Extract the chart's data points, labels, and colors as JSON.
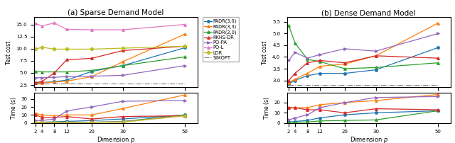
{
  "x": [
    2,
    4,
    8,
    12,
    20,
    30,
    50
  ],
  "sparse_cost": {
    "PADR(3,0)": [
      2.9,
      3.0,
      3.2,
      3.5,
      5.3,
      6.5,
      10.2
    ],
    "PADR(3,3)": [
      2.9,
      3.0,
      3.1,
      3.3,
      4.2,
      7.3,
      13.0
    ],
    "PADR(2,0)": [
      5.3,
      5.2,
      5.2,
      5.2,
      5.5,
      6.5,
      8.3
    ],
    "RKHS-DR": [
      3.0,
      3.2,
      5.0,
      7.7,
      8.0,
      9.6,
      10.5
    ],
    "PO-PA": [
      4.0,
      4.0,
      4.1,
      4.2,
      4.3,
      4.5,
      6.5
    ],
    "PO-L": [
      15.2,
      14.7,
      15.3,
      14.0,
      13.9,
      13.9,
      15.0
    ],
    "LDR": [
      9.9,
      10.3,
      9.9,
      9.9,
      9.9,
      10.1,
      10.5
    ],
    "SIMOPT": [
      2.8,
      2.8,
      2.8,
      2.8,
      2.8,
      2.8,
      2.8
    ]
  },
  "sparse_time": {
    "PADR(3,0)": [
      1.0,
      1.0,
      1.5,
      2.0,
      3.0,
      5.0,
      10.0
    ],
    "PADR(3,3)": [
      12.0,
      10.0,
      9.0,
      10.0,
      10.0,
      18.0,
      35.0
    ],
    "PADR(2,0)": [
      0.5,
      0.5,
      0.5,
      0.8,
      1.0,
      2.0,
      10.0
    ],
    "RKHS-DR": [
      10.0,
      7.0,
      7.0,
      8.0,
      5.0,
      8.0,
      9.0
    ],
    "PO-PA": [
      3.0,
      3.0,
      5.0,
      15.0,
      20.0,
      27.0,
      28.0
    ],
    "PO-L": [
      0.5,
      0.5,
      0.5,
      0.7,
      1.0,
      1.5,
      9.0
    ],
    "LDR": [
      0.5,
      0.5,
      0.5,
      0.5,
      0.8,
      1.0,
      9.0
    ]
  },
  "dense_cost": {
    "PADR(3,0)": [
      2.85,
      3.0,
      3.2,
      3.3,
      3.3,
      3.45,
      4.4
    ],
    "PADR(3,3)": [
      2.9,
      3.05,
      3.3,
      3.6,
      3.7,
      4.05,
      5.45
    ],
    "PADR(2,0)": [
      5.35,
      4.6,
      3.9,
      3.8,
      3.5,
      3.55,
      3.75
    ],
    "RKHS-DR": [
      3.0,
      3.3,
      3.75,
      3.85,
      3.75,
      4.05,
      3.95
    ],
    "PO-PA": [
      3.85,
      4.2,
      3.95,
      4.1,
      4.35,
      4.25,
      5.0
    ],
    "SIMOPT": [
      2.8,
      2.8,
      2.8,
      2.8,
      2.8,
      2.8,
      2.8
    ]
  },
  "dense_time": {
    "PADR(3,0)": [
      1.0,
      1.5,
      2.5,
      5.0,
      8.0,
      10.0,
      12.0
    ],
    "PADR(3,3)": [
      15.0,
      15.0,
      15.0,
      18.0,
      20.0,
      22.0,
      28.0
    ],
    "PADR(2,0)": [
      0.5,
      0.8,
      1.0,
      2.0,
      2.5,
      3.0,
      12.0
    ],
    "RKHS-DR": [
      15.0,
      15.0,
      13.0,
      13.0,
      10.0,
      14.0,
      13.0
    ],
    "PO-PA": [
      3.0,
      5.0,
      8.0,
      15.0,
      20.0,
      25.0,
      26.0
    ]
  },
  "colors": {
    "PADR(3,0)": "#1f77b4",
    "PADR(3,3)": "#ff7f0e",
    "PADR(2,0)": "#2ca02c",
    "RKHS-DR": "#d62728",
    "PO-PA": "#9467bd",
    "PO-L": "#e377c2",
    "LDR": "#bcbd22",
    "SIMOPT": "#7f7f7f"
  },
  "markers": {
    "PADR(3,0)": "o",
    "PADR(3,3)": "^",
    "PADR(2,0)": "^",
    "RKHS-DR": "^",
    "PO-PA": ">",
    "PO-L": "^",
    "LDR": "D",
    "SIMOPT": "None"
  },
  "title_a": "(a) Sparse Demand Model",
  "title_b": "(b) Dense Demand Model",
  "xlabel": "Dimension $p$",
  "ylabel_cost": "Test cost",
  "ylabel_time": "Time (s)",
  "sparse_ylim_cost": [
    2.0,
    16.5
  ],
  "sparse_ylim_time": [
    0,
    38
  ],
  "dense_ylim_cost": [
    2.7,
    5.7
  ],
  "dense_ylim_time": [
    0,
    30
  ],
  "sparse_yticks_cost": [
    2.5,
    5.0,
    7.5,
    10.0,
    12.5,
    15.0
  ],
  "sparse_yticks_time": [
    0,
    10,
    20,
    30
  ],
  "dense_yticks_cost": [
    3.0,
    3.5,
    4.0,
    4.5,
    5.0,
    5.5
  ],
  "dense_yticks_time": [
    0,
    10,
    20
  ]
}
